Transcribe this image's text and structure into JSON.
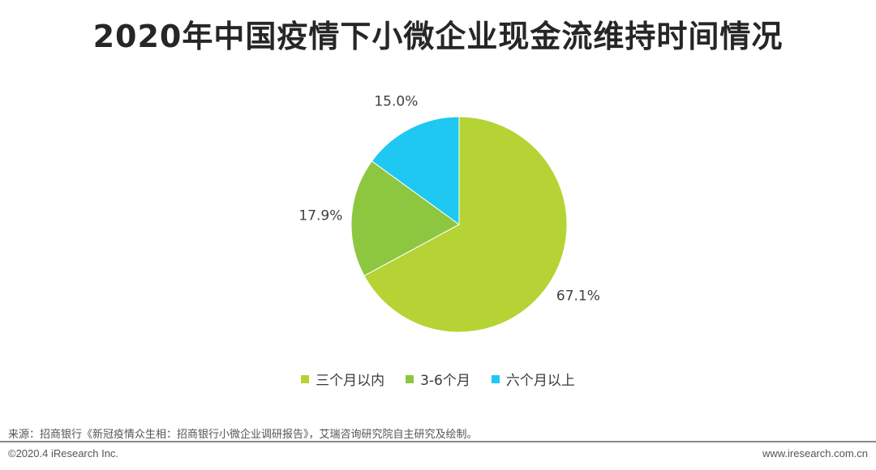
{
  "chart_data": {
    "type": "pie",
    "title": "2020年中国疫情下小微企业现金流维持时间情况",
    "categories": [
      "三个月以内",
      "3-6个月",
      "六个月以上"
    ],
    "values": [
      67.1,
      17.9,
      15.0
    ],
    "labels": [
      "67.1%",
      "17.9%",
      "15.0%"
    ],
    "colors": [
      "#b5d334",
      "#8dc63f",
      "#1ec8f3"
    ],
    "legend_position": "bottom",
    "start_angle": "12 o'clock, clockwise"
  },
  "footer": {
    "source": "来源：招商银行《新冠疫情众生相：招商银行小微企业调研报告》，艾瑞咨询研究院自主研究及绘制。",
    "copyright": "©2020.4 iResearch Inc.",
    "website": "www.iresearch.com.cn"
  }
}
